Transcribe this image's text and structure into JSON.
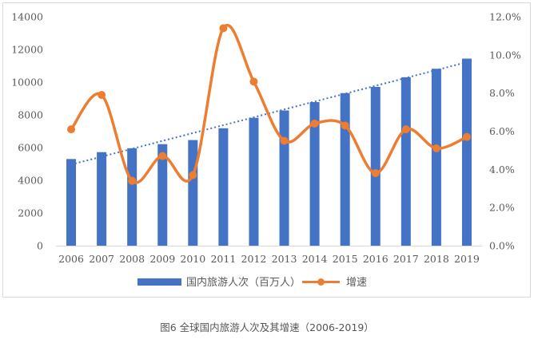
{
  "caption": "图6 全球国内旅游人次及其增速（2006-2019）",
  "chart_data": {
    "type": "bar",
    "categories": [
      "2006",
      "2007",
      "2008",
      "2009",
      "2010",
      "2011",
      "2012",
      "2013",
      "2014",
      "2015",
      "2016",
      "2017",
      "2018",
      "2019"
    ],
    "series": [
      {
        "name": "国内旅游人次（百万人）",
        "type": "bar",
        "axis": "left",
        "color": "#4472c4",
        "values": [
          5300,
          5720,
          5960,
          6210,
          6460,
          7180,
          7820,
          8270,
          8780,
          9330,
          9710,
          10300,
          10820,
          11440
        ]
      },
      {
        "name": "增速",
        "type": "line",
        "axis": "right",
        "color": "#ed7d31",
        "values": [
          6.1,
          7.9,
          3.4,
          4.7,
          3.7,
          11.4,
          8.6,
          5.5,
          6.4,
          6.3,
          3.8,
          6.1,
          5.1,
          5.7
        ]
      }
    ],
    "trendline": {
      "of_series": "国内旅游人次（百万人）",
      "style": "dotted",
      "color": "#4472c4"
    },
    "y_left": {
      "min": 0,
      "max": 14000,
      "ticks": [
        0,
        2000,
        4000,
        6000,
        8000,
        10000,
        12000,
        14000
      ],
      "tick_labels": [
        "0",
        "2000",
        "4000",
        "6000",
        "8000",
        "10000",
        "12000",
        "14000"
      ]
    },
    "y_right": {
      "min": 0,
      "max": 12,
      "ticks": [
        0,
        2,
        4,
        6,
        8,
        10,
        12
      ],
      "tick_labels": [
        "0.0%",
        "2.0%",
        "4.0%",
        "6.0%",
        "8.0%",
        "10.0%",
        "12.0%"
      ]
    },
    "grid": false,
    "legend": {
      "position": "bottom",
      "entries": [
        "国内旅游人次（百万人）",
        "增速"
      ]
    },
    "title": "",
    "xlabel": "",
    "ylabel": ""
  }
}
